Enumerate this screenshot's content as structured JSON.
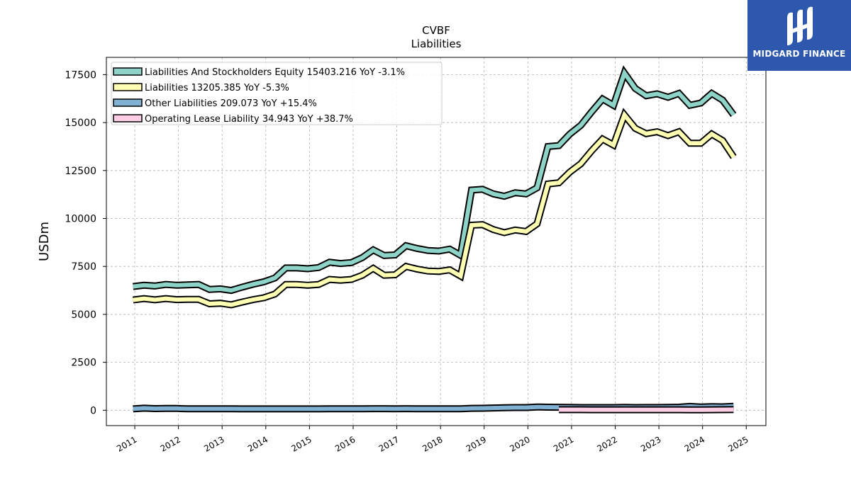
{
  "chart_data": {
    "type": "line",
    "title": "CVBF",
    "subtitle": "Liabilities",
    "ylabel": "USDm",
    "xlabel": "",
    "ylim": [
      -800,
      18400
    ],
    "xlim": [
      2010.35,
      2025.45
    ],
    "yticks": [
      0,
      2500,
      5000,
      7500,
      10000,
      12500,
      15000,
      17500
    ],
    "ytick_labels": [
      "0",
      "2500",
      "5000",
      "7500",
      "10000",
      "12500",
      "15000",
      "17500"
    ],
    "xticks": [
      2011,
      2012,
      2013,
      2014,
      2015,
      2016,
      2017,
      2018,
      2019,
      2020,
      2021,
      2022,
      2023,
      2024,
      2025
    ],
    "xtick_labels": [
      "2011",
      "2012",
      "2013",
      "2014",
      "2015",
      "2016",
      "2017",
      "2018",
      "2019",
      "2020",
      "2021",
      "2022",
      "2023",
      "2024",
      "2025"
    ],
    "grid": true,
    "legend_position": "top-left",
    "series": [
      {
        "name": "Liabilities And Stockholders Equity",
        "legend": "Liabilities And Stockholders Equity  15403.216 YoY -3.1%",
        "color": "#8dd3c7",
        "x": [
          2010.96,
          2011.21,
          2011.46,
          2011.71,
          2011.96,
          2012.21,
          2012.46,
          2012.71,
          2012.96,
          2013.21,
          2013.46,
          2013.71,
          2013.96,
          2014.21,
          2014.46,
          2014.71,
          2014.96,
          2015.21,
          2015.46,
          2015.71,
          2015.96,
          2016.21,
          2016.46,
          2016.71,
          2016.96,
          2017.21,
          2017.46,
          2017.71,
          2017.96,
          2018.21,
          2018.46,
          2018.71,
          2018.96,
          2019.21,
          2019.46,
          2019.71,
          2019.96,
          2020.21,
          2020.46,
          2020.71,
          2020.96,
          2021.21,
          2021.46,
          2021.71,
          2021.96,
          2022.21,
          2022.46,
          2022.71,
          2022.96,
          2023.21,
          2023.46,
          2023.71,
          2023.96,
          2024.21,
          2024.46,
          2024.71
        ],
        "values": [
          6450,
          6520,
          6480,
          6560,
          6520,
          6540,
          6560,
          6300,
          6330,
          6250,
          6420,
          6570,
          6700,
          6900,
          7420,
          7420,
          7380,
          7440,
          7720,
          7650,
          7700,
          7960,
          8360,
          8070,
          8100,
          8580,
          8440,
          8330,
          8300,
          8400,
          8080,
          11480,
          11520,
          11280,
          11160,
          11340,
          11280,
          11600,
          13750,
          13800,
          14400,
          14850,
          15560,
          16230,
          15900,
          17580,
          16780,
          16400,
          16500,
          16320,
          16520,
          15900,
          16020,
          16520,
          16170,
          15403
        ]
      },
      {
        "name": "Liabilities",
        "legend": "Liabilities  13205.385 YoY -5.3%",
        "color": "#ffffb3",
        "x": [
          2010.96,
          2011.21,
          2011.46,
          2011.71,
          2011.96,
          2012.21,
          2012.46,
          2012.71,
          2012.96,
          2013.21,
          2013.46,
          2013.71,
          2013.96,
          2014.21,
          2014.46,
          2014.71,
          2014.96,
          2015.21,
          2015.46,
          2015.71,
          2015.96,
          2016.21,
          2016.46,
          2016.71,
          2016.96,
          2017.21,
          2017.46,
          2017.71,
          2017.96,
          2018.21,
          2018.46,
          2018.71,
          2018.96,
          2019.21,
          2019.46,
          2019.71,
          2019.96,
          2020.21,
          2020.46,
          2020.71,
          2020.96,
          2021.21,
          2021.46,
          2021.71,
          2021.96,
          2022.21,
          2022.46,
          2022.71,
          2022.96,
          2023.21,
          2023.46,
          2023.71,
          2023.96,
          2024.21,
          2024.46,
          2024.71
        ],
        "values": [
          5750,
          5820,
          5760,
          5820,
          5770,
          5780,
          5780,
          5550,
          5580,
          5500,
          5640,
          5770,
          5870,
          6060,
          6560,
          6560,
          6520,
          6560,
          6820,
          6780,
          6820,
          7040,
          7400,
          7040,
          7060,
          7500,
          7360,
          7260,
          7240,
          7320,
          7000,
          9650,
          9680,
          9420,
          9260,
          9400,
          9320,
          9720,
          11800,
          11860,
          12420,
          12850,
          13530,
          14140,
          13830,
          15400,
          14700,
          14420,
          14520,
          14320,
          14520,
          13920,
          13920,
          14400,
          14060,
          13205
        ]
      },
      {
        "name": "Other Liabilities",
        "legend": "Other Liabilities  209.073 YoY +15.4%",
        "color": "#80b1d3",
        "x": [
          2010.96,
          2011.21,
          2011.46,
          2011.71,
          2011.96,
          2012.21,
          2012.46,
          2012.71,
          2012.96,
          2013.21,
          2013.46,
          2013.71,
          2013.96,
          2014.21,
          2014.46,
          2014.71,
          2014.96,
          2015.21,
          2015.46,
          2015.71,
          2015.96,
          2016.21,
          2016.46,
          2016.71,
          2016.96,
          2017.21,
          2017.46,
          2017.71,
          2017.96,
          2018.21,
          2018.46,
          2018.71,
          2018.96,
          2019.21,
          2019.46,
          2019.71,
          2019.96,
          2020.21,
          2020.46,
          2020.71,
          2020.96,
          2021.21,
          2021.46,
          2021.71,
          2021.96,
          2022.21,
          2022.46,
          2022.71,
          2022.96,
          2023.21,
          2023.46,
          2023.71,
          2023.96,
          2024.21,
          2024.46,
          2024.71
        ],
        "values": [
          70,
          110,
          85,
          95,
          95,
          75,
          80,
          80,
          75,
          75,
          70,
          70,
          72,
          70,
          70,
          70,
          70,
          72,
          75,
          75,
          78,
          80,
          82,
          82,
          80,
          82,
          80,
          80,
          80,
          80,
          80,
          100,
          105,
          120,
          130,
          140,
          140,
          170,
          160,
          155,
          150,
          140,
          140,
          140,
          140,
          150,
          140,
          145,
          145,
          150,
          160,
          200,
          170,
          190,
          180,
          209
        ]
      },
      {
        "name": "Operating Lease Liability",
        "legend": "Operating Lease Liability  34.943 YoY +38.7%",
        "color": "#fccde5",
        "x": [
          2020.71,
          2020.96,
          2021.21,
          2021.46,
          2021.71,
          2021.96,
          2022.21,
          2022.46,
          2022.71,
          2022.96,
          2023.21,
          2023.46,
          2023.71,
          2023.96,
          2024.21,
          2024.46,
          2024.71
        ],
        "values": [
          30,
          30,
          30,
          28,
          28,
          27,
          27,
          27,
          26,
          26,
          26,
          26,
          25,
          25,
          26,
          30,
          35
        ]
      }
    ]
  },
  "logo": {
    "brand": "MIDGARD FINANCE"
  }
}
